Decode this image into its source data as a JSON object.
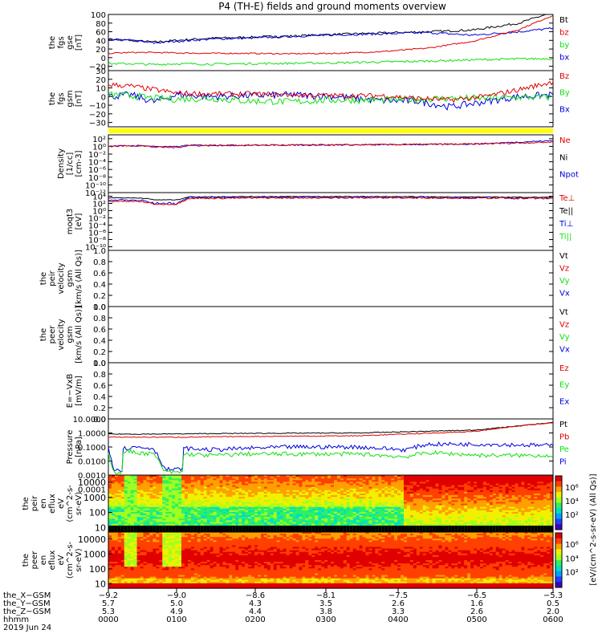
{
  "title": "P4 (TH-E) fields and ground moments overview",
  "colors": {
    "black": "#000000",
    "red": "#e00000",
    "green": "#10e010",
    "blue": "#0000e0",
    "yellow": "#ffff00"
  },
  "chart_data": [
    {
      "type": "line",
      "ylabel": [
        "the",
        "fgs",
        "gse",
        "[nT]"
      ],
      "ylim": [
        -30,
        100
      ],
      "ticks": [
        "100",
        "80",
        "60",
        "40",
        "20",
        "0",
        "−20"
      ],
      "tick_values": [
        100,
        80,
        60,
        40,
        20,
        0,
        -20
      ],
      "legend": [
        {
          "name": "Bt",
          "color": "black"
        },
        {
          "name": "bz",
          "color": "red"
        },
        {
          "name": "by",
          "color": "green"
        },
        {
          "name": "bx",
          "color": "blue"
        }
      ],
      "series": [
        {
          "name": "Bt",
          "color": "black",
          "noise": 2.5,
          "x": [
            -9.2,
            -9.0,
            -8.8,
            -8.6,
            -8.3,
            -8.0,
            -7.6,
            -7.2,
            -6.8,
            -6.4,
            -6.0,
            -5.6,
            -5.3
          ],
          "y": [
            42,
            40,
            36,
            40,
            45,
            47,
            50,
            54,
            57,
            60,
            64,
            80,
            105
          ]
        },
        {
          "name": "bx",
          "color": "blue",
          "noise": 2.5,
          "x": [
            -9.2,
            -9.0,
            -8.8,
            -8.6,
            -8.3,
            -8.0,
            -7.6,
            -7.2,
            -6.8,
            -6.4,
            -6.0,
            -5.6,
            -5.3
          ],
          "y": [
            42,
            40,
            34,
            38,
            43,
            45,
            49,
            53,
            55,
            58,
            52,
            60,
            68
          ]
        },
        {
          "name": "bz",
          "color": "red",
          "noise": 1.5,
          "x": [
            -9.2,
            -9.0,
            -8.8,
            -8.6,
            -8.3,
            -8.0,
            -7.6,
            -7.2,
            -6.8,
            -6.4,
            -6.0,
            -5.6,
            -5.3
          ],
          "y": [
            10,
            12,
            12,
            11,
            10,
            10,
            9,
            10,
            14,
            22,
            38,
            65,
            98
          ]
        },
        {
          "name": "by",
          "color": "green",
          "noise": 2.5,
          "x": [
            -9.2,
            -9.0,
            -8.8,
            -8.6,
            -8.3,
            -8.0,
            -7.6,
            -7.2,
            -6.8,
            -6.4,
            -6.0,
            -5.6,
            -5.3
          ],
          "y": [
            -14,
            -14,
            -16,
            -14,
            -15,
            -14,
            -13,
            -12,
            -10,
            -8,
            -5,
            -3,
            -2
          ]
        }
      ]
    },
    {
      "type": "line",
      "ylabel": [
        "the",
        "fgs",
        "gsm",
        "[nT]"
      ],
      "ylim": [
        -35,
        30
      ],
      "ticks": [
        "30",
        "20",
        "10",
        "0",
        "−10",
        "−20",
        "−30"
      ],
      "tick_values": [
        30,
        20,
        10,
        0,
        -10,
        -20,
        -30
      ],
      "legend": [
        {
          "name": "Bz",
          "color": "red"
        },
        {
          "name": "By",
          "color": "green"
        },
        {
          "name": "Bx",
          "color": "blue"
        }
      ],
      "series": [
        {
          "name": "Bx",
          "color": "blue",
          "noise": 4,
          "x": [
            -9.2,
            -9.0,
            -8.8,
            -8.6,
            -8.3,
            -8.0,
            -7.6,
            -7.2,
            -6.8,
            -6.5,
            -6.2,
            -5.9,
            -5.6,
            -5.3
          ],
          "y": [
            0,
            2,
            -6,
            2,
            0,
            1,
            2,
            0,
            -5,
            -5,
            -12,
            -6,
            0,
            2
          ]
        },
        {
          "name": "By",
          "color": "green",
          "noise": 4,
          "x": [
            -9.2,
            -9.0,
            -8.8,
            -8.6,
            -8.3,
            -8.0,
            -7.6,
            -7.2,
            -6.8,
            -6.5,
            -6.2,
            -5.9,
            -5.6,
            -5.3
          ],
          "y": [
            2,
            1,
            -2,
            -3,
            -2,
            -5,
            -6,
            -4,
            -4,
            -3,
            -2,
            -2,
            -1,
            -1
          ]
        },
        {
          "name": "Bz",
          "color": "red",
          "noise": 3,
          "x": [
            -9.2,
            -9.0,
            -8.8,
            -8.6,
            -8.3,
            -8.0,
            -7.6,
            -7.2,
            -6.8,
            -6.5,
            -6.2,
            -5.9,
            -5.6,
            -5.3
          ],
          "y": [
            14,
            12,
            8,
            4,
            3,
            3,
            2,
            1,
            1,
            -2,
            -4,
            0,
            8,
            17
          ]
        }
      ]
    },
    {
      "type": "line",
      "ylabel": [
        "Density",
        "[1/cc]",
        "[cm-3]"
      ],
      "ylim": [
        -12,
        3
      ],
      "log": true,
      "ticks": [
        "10²",
        "10⁰",
        "10⁻²",
        "10⁻⁴",
        "10⁻⁶",
        "10⁻⁸",
        "10⁻¹⁰",
        "10⁻¹²"
      ],
      "tick_values": [
        2,
        0,
        -2,
        -4,
        -6,
        -8,
        -10,
        -12
      ],
      "legend": [
        {
          "name": "Ne",
          "color": "red"
        },
        {
          "name": "Ni",
          "color": "black"
        },
        {
          "name": "Npot",
          "color": "blue"
        }
      ],
      "series": [
        {
          "name": "Npot",
          "color": "blue",
          "noise": 0.15,
          "x": [
            -9.2,
            -8.9,
            -8.8,
            -8.6,
            -8.5,
            -8.0,
            -7.0,
            -6.0,
            -5.3
          ],
          "y": [
            0.1,
            0.2,
            0.0,
            -0.1,
            0.3,
            0.3,
            0.4,
            0.6,
            1.5
          ]
        },
        {
          "name": "Ne",
          "color": "red",
          "noise": 0.2,
          "x": [
            -9.2,
            -8.9,
            -8.8,
            -8.6,
            -8.5,
            -8.0,
            -7.0,
            -6.0,
            -5.3
          ],
          "y": [
            0.0,
            0.2,
            -0.2,
            -0.3,
            0.2,
            0.3,
            0.4,
            0.6,
            1.1
          ]
        }
      ]
    },
    {
      "type": "line",
      "ylabel": [
        "moqt3",
        "[eV]"
      ],
      "ylim": [
        -11,
        5
      ],
      "log": true,
      "ticks": [
        "10⁴",
        "10²",
        "10⁰",
        "10⁻²",
        "10⁻⁴",
        "10⁻⁶",
        "10⁻⁸",
        "10⁻¹⁰"
      ],
      "tick_values": [
        4,
        2,
        0,
        -2,
        -4,
        -6,
        -8,
        -10
      ],
      "legend": [
        {
          "name": "Te⊥",
          "color": "red"
        },
        {
          "name": "Te||",
          "color": "black"
        },
        {
          "name": "Ti⊥",
          "color": "blue"
        },
        {
          "name": "Ti||",
          "color": "green"
        }
      ],
      "series": [
        {
          "name": "Te||",
          "color": "black",
          "noise": 0.1,
          "x": [
            -9.2,
            -8.9,
            -8.8,
            -8.6,
            -8.5,
            -8.0,
            -7.0,
            -6.0,
            -5.3
          ],
          "y": [
            3.6,
            3.5,
            3.0,
            3.0,
            3.8,
            3.9,
            3.9,
            3.8,
            3.7
          ]
        },
        {
          "name": "Ti⊥",
          "color": "blue",
          "noise": 0.3,
          "x": [
            -9.2,
            -8.9,
            -8.8,
            -8.6,
            -8.5,
            -8.0,
            -7.0,
            -6.0,
            -5.3
          ],
          "y": [
            3.0,
            2.8,
            2.0,
            2.0,
            3.6,
            3.7,
            3.7,
            3.6,
            3.4
          ]
        },
        {
          "name": "Te⊥",
          "color": "red",
          "noise": 0.2,
          "x": [
            -9.2,
            -8.9,
            -8.8,
            -8.6,
            -8.5,
            -8.0,
            -7.0,
            -6.0,
            -5.3
          ],
          "y": [
            2.6,
            2.5,
            1.8,
            1.8,
            3.4,
            3.5,
            3.6,
            3.5,
            3.4
          ]
        }
      ]
    },
    {
      "type": "line",
      "ylabel": [
        "the",
        "peir",
        "velocity",
        "gsm",
        "[km/s (All Qs)]"
      ],
      "ylim": [
        0,
        1
      ],
      "ticks": [
        "1.0",
        "0.8",
        "0.6",
        "0.4",
        "0.2",
        "0.0"
      ],
      "tick_values": [
        1.0,
        0.8,
        0.6,
        0.4,
        0.2,
        0.0
      ],
      "legend": [
        {
          "name": "Vt",
          "color": "black"
        },
        {
          "name": "Vz",
          "color": "red"
        },
        {
          "name": "Vy",
          "color": "green"
        },
        {
          "name": "Vx",
          "color": "blue"
        }
      ],
      "series": []
    },
    {
      "type": "line",
      "ylabel": [
        "the",
        "peer",
        "velocity",
        "gsm",
        "[km/s (All Qs)]"
      ],
      "ylim": [
        0,
        1
      ],
      "ticks": [
        "1.0",
        "0.8",
        "0.6",
        "0.4",
        "0.2",
        "0.0"
      ],
      "tick_values": [
        1.0,
        0.8,
        0.6,
        0.4,
        0.2,
        0.0
      ],
      "legend": [
        {
          "name": "Vt",
          "color": "black"
        },
        {
          "name": "Vz",
          "color": "red"
        },
        {
          "name": "Vy",
          "color": "green"
        },
        {
          "name": "Vx",
          "color": "blue"
        }
      ],
      "series": []
    },
    {
      "type": "line",
      "ylabel": [
        "E=−VxB",
        "[mV/m]"
      ],
      "ylim": [
        0,
        1
      ],
      "ticks": [
        "1.0",
        "0.8",
        "0.6",
        "0.4",
        "0.2",
        "0.0"
      ],
      "tick_values": [
        1.0,
        0.8,
        0.6,
        0.4,
        0.2,
        0.0
      ],
      "legend": [
        {
          "name": "Ez",
          "color": "red"
        },
        {
          "name": "Ey",
          "color": "green"
        },
        {
          "name": "Ex",
          "color": "blue"
        }
      ],
      "series": []
    },
    {
      "type": "line",
      "ylabel": [
        "Pressure",
        "[nPa]"
      ],
      "ylim": [
        -3,
        1
      ],
      "log": true,
      "ticks": [
        "10.0000",
        "1.0000",
        "0.1000",
        "0.0100",
        "0.0010",
        "0.0001"
      ],
      "tick_values": [
        1,
        0,
        -1,
        -2,
        -3,
        -4
      ],
      "legend": [
        {
          "name": "Pt",
          "color": "black"
        },
        {
          "name": "Pb",
          "color": "red"
        },
        {
          "name": "Pe",
          "color": "green"
        },
        {
          "name": "Pi",
          "color": "blue"
        }
      ],
      "series": [
        {
          "name": "Pt",
          "color": "black",
          "noise": 0.03,
          "x": [
            -9.2,
            -9.1,
            -9.08,
            -9.0,
            -8.8,
            -8.5,
            -8.0,
            -7.0,
            -6.0,
            -5.6,
            -5.3
          ],
          "y": [
            -0.08,
            -0.08,
            -0.08,
            -0.08,
            -0.08,
            -0.06,
            -0.03,
            0.0,
            0.2,
            0.5,
            0.75
          ]
        },
        {
          "name": "Pb",
          "color": "red",
          "noise": 0.03,
          "x": [
            -9.2,
            -9.0,
            -8.5,
            -8.0,
            -7.0,
            -6.0,
            -5.6,
            -5.3
          ],
          "y": [
            -0.3,
            -0.3,
            -0.3,
            -0.25,
            -0.2,
            0.1,
            0.5,
            0.72
          ]
        },
        {
          "name": "Pi",
          "color": "blue",
          "noise": 0.15,
          "x": [
            -9.2,
            -9.15,
            -9.08,
            -9.07,
            -8.95,
            -8.8,
            -8.7,
            -8.55,
            -8.54,
            -8.3,
            -8.0,
            -7.6,
            -7.0,
            -6.6,
            -6.4,
            -5.9,
            -5.3
          ],
          "y": [
            -1.0,
            -2.6,
            -2.6,
            -1.1,
            -1.0,
            -1.1,
            -2.6,
            -2.6,
            -1.1,
            -1.2,
            -1.1,
            -1.0,
            -1.0,
            -1.2,
            -0.8,
            -0.8,
            -0.9
          ]
        },
        {
          "name": "Pe",
          "color": "green",
          "noise": 0.15,
          "x": [
            -9.2,
            -9.15,
            -9.08,
            -9.07,
            -8.95,
            -8.8,
            -8.7,
            -8.55,
            -8.54,
            -8.3,
            -8.0,
            -7.6,
            -7.0,
            -6.6,
            -6.4,
            -5.9,
            -5.3
          ],
          "y": [
            -1.4,
            -2.8,
            -2.8,
            -1.3,
            -1.4,
            -1.5,
            -2.8,
            -2.8,
            -1.5,
            -1.6,
            -1.5,
            -1.5,
            -1.5,
            -1.7,
            -1.4,
            -1.6,
            -1.6
          ]
        }
      ]
    },
    {
      "type": "heatmap",
      "ylabel": [
        "the",
        "peir",
        "en",
        "eflux",
        "eV",
        "(cm^2-s-",
        "sr-eV)"
      ],
      "ylim": [
        5,
        30000
      ],
      "log": true,
      "ticks": [
        "10000",
        "1000",
        "100",
        "10"
      ],
      "tick_values": [
        10000,
        1000,
        100,
        10
      ]
    },
    {
      "type": "heatmap",
      "ylabel": [
        "the",
        "peer",
        "en",
        "eflux",
        "eV",
        "(cm^2-s-",
        "sr-eV)"
      ],
      "ylim": [
        5,
        30000
      ],
      "log": true,
      "ticks": [
        "10000",
        "1000",
        "100",
        "10"
      ],
      "tick_values": [
        10000,
        1000,
        100,
        10
      ]
    }
  ],
  "colorbar": {
    "ticks_top": [
      "10⁶",
      "10⁴",
      "10²"
    ],
    "ticks_bottom": [
      "10⁶",
      "10⁴",
      "10²"
    ],
    "label": "[eV/(cm^2-s-sr-eV)]",
    "label_bottom": "[eV/(cm^2-s-sr-eV) (All Qs)]"
  },
  "x_axis": {
    "rows": [
      {
        "label": "the_X−GSM",
        "values": [
          "−9.2",
          "−9.0",
          "−8.6",
          "−8.1",
          "−7.5",
          "−6.5",
          "−5.3"
        ]
      },
      {
        "label": "the_Y−GSM",
        "values": [
          "5.7",
          "5.0",
          "4.3",
          "3.5",
          "2.6",
          "1.6",
          "0.5"
        ]
      },
      {
        "label": "the_Z−GSM",
        "values": [
          "5.3",
          "4.9",
          "4.4",
          "3.8",
          "3.3",
          "2.6",
          "2.0"
        ]
      },
      {
        "label": "hhmm",
        "values": [
          "0000",
          "0100",
          "0200",
          "0300",
          "0400",
          "0500",
          "0600"
        ]
      }
    ],
    "date": "2019 Jun 24"
  }
}
